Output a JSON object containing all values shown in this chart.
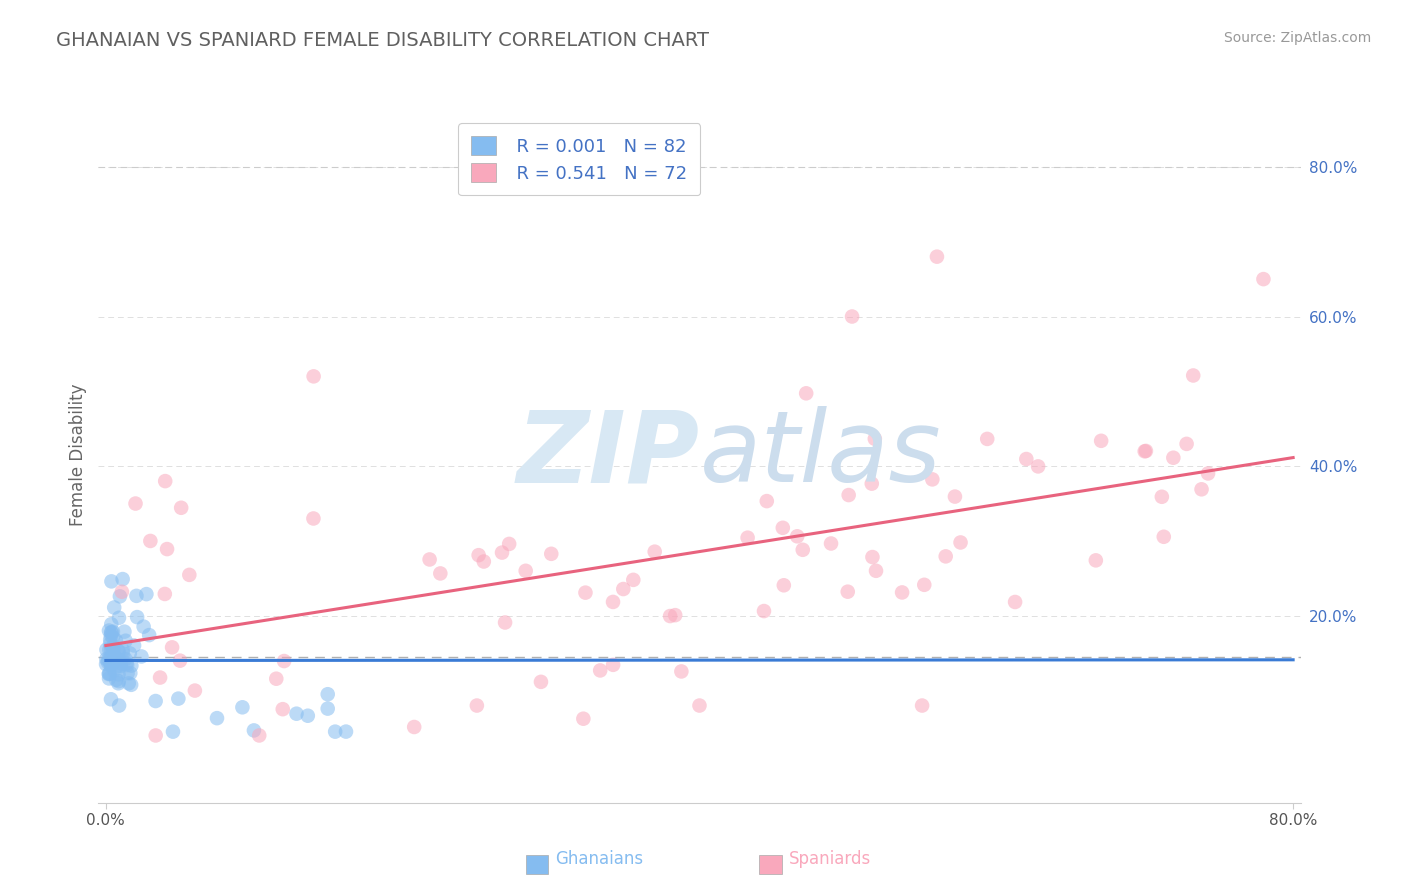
{
  "title": "GHANAIAN VS SPANIARD FEMALE DISABILITY CORRELATION CHART",
  "source": "Source: ZipAtlas.com",
  "xlabel_bottom": [
    "Ghanaians",
    "Spaniards"
  ],
  "ylabel": "Female Disability",
  "legend_r1": "R = 0.001",
  "legend_n1": "N = 82",
  "legend_r2": "R = 0.541",
  "legend_n2": "N = 72",
  "color_ghanaian": "#85bcf0",
  "color_spaniard": "#f9a8bc",
  "color_line_ghanaian": "#3a7bd5",
  "color_line_spaniard": "#e8637e",
  "background_color": "#ffffff",
  "title_color": "#606060",
  "source_color": "#999999",
  "watermark_color": "#d8e8f4",
  "xlim": [
    0.0,
    0.8
  ],
  "ylim": [
    -0.05,
    0.88
  ],
  "dashed_line_y": 0.145
}
